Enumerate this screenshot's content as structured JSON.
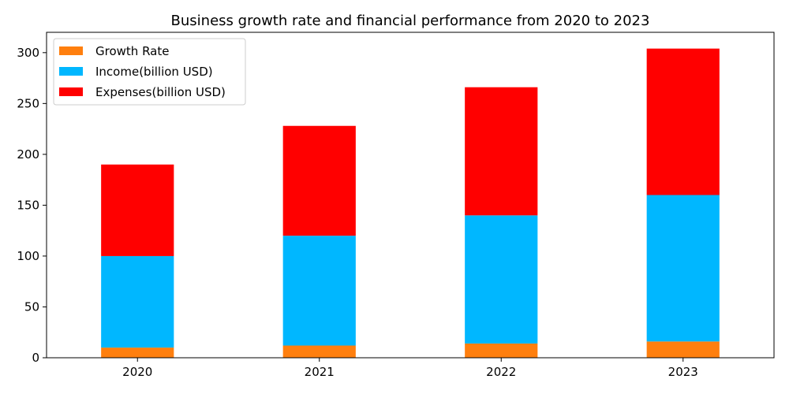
{
  "chart_data": {
    "type": "bar",
    "stacked": true,
    "title": "Business growth rate and financial performance from 2020 to 2023",
    "xlabel": "",
    "ylabel": "",
    "categories": [
      "2020",
      "2021",
      "2022",
      "2023"
    ],
    "ylim": [
      0,
      320
    ],
    "yticks": [
      0,
      50,
      100,
      150,
      200,
      250,
      300
    ],
    "grid": false,
    "legend_position": "top-left",
    "series": [
      {
        "name": "Growth Rate",
        "color": "#ff7f0e",
        "values": [
          10,
          12,
          14,
          16
        ]
      },
      {
        "name": "Income(billion USD)",
        "color": "#00b7ff",
        "values": [
          90,
          108,
          126,
          144
        ]
      },
      {
        "name": "Expenses(billion USD)",
        "color": "#ff0000",
        "values": [
          90,
          108,
          126,
          144
        ]
      }
    ]
  }
}
